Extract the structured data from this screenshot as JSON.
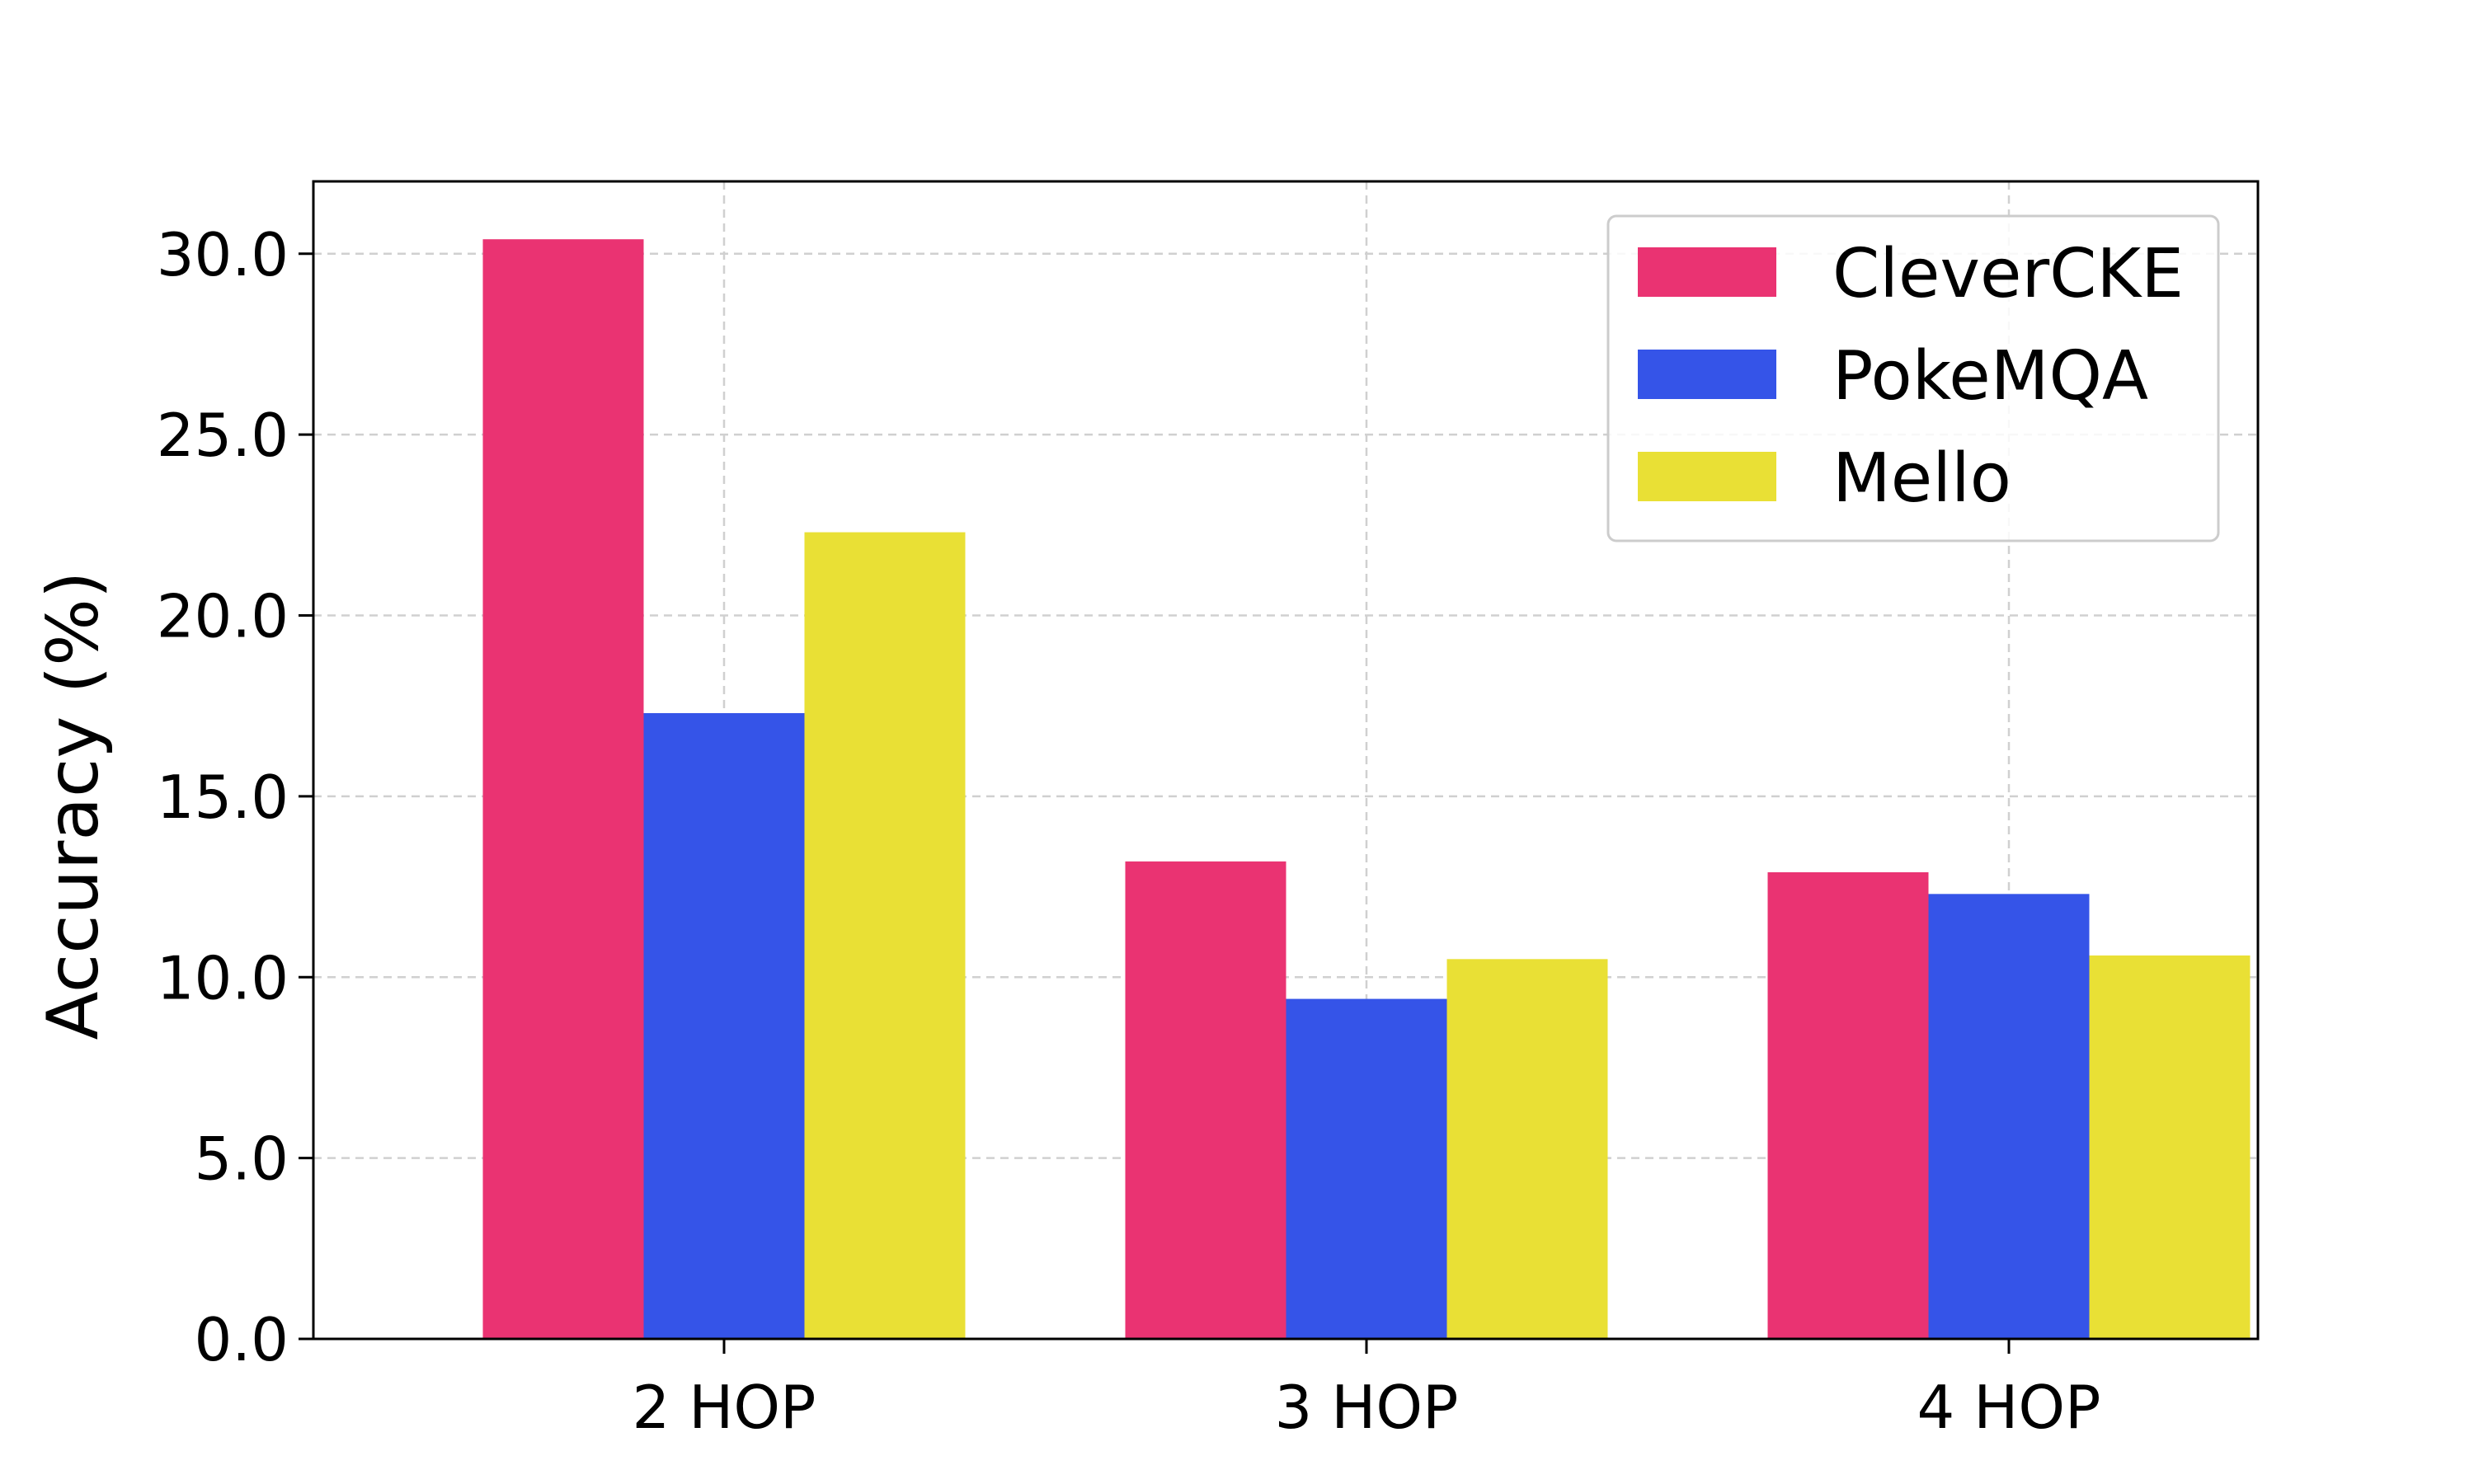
{
  "chart_data": {
    "type": "bar",
    "title": "",
    "xlabel": "",
    "ylabel": "Accuracy (%)",
    "categories": [
      "2 HOP",
      "3 HOP",
      "4 HOP"
    ],
    "ylim": [
      0,
      32
    ],
    "yticks": [
      "0.0",
      "5.0",
      "10.0",
      "15.0",
      "20.0",
      "25.0",
      "30.0"
    ],
    "grid": true,
    "legend_position": "top-right",
    "series": [
      {
        "name": "CleverCKE",
        "color": "#EA3372",
        "values": [
          30.4,
          13.2,
          12.9
        ]
      },
      {
        "name": "PokeMQA",
        "color": "#3554E8",
        "values": [
          17.3,
          9.4,
          12.3
        ]
      },
      {
        "name": "Mello",
        "color": "#E9E035",
        "values": [
          22.3,
          10.5,
          10.6
        ]
      }
    ]
  }
}
